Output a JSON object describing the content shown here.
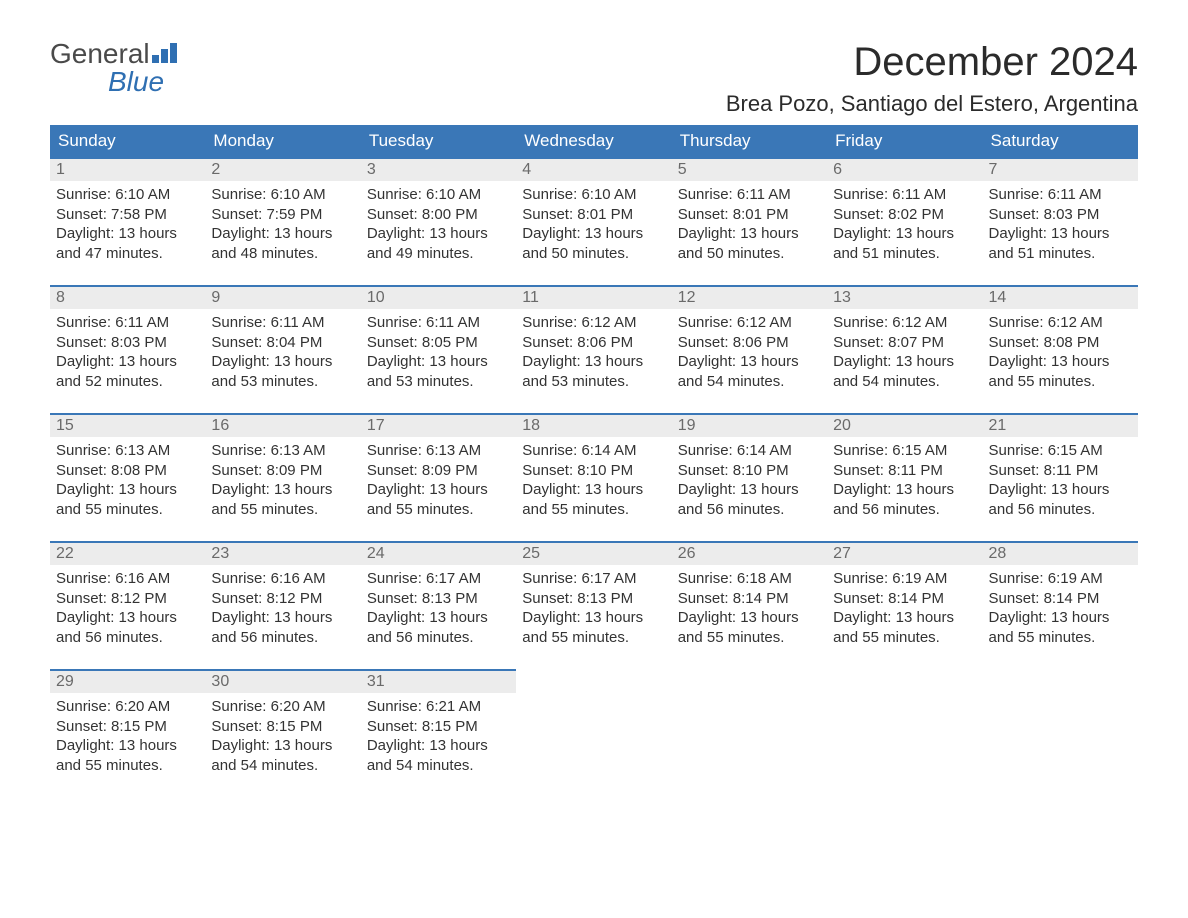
{
  "logo": {
    "word1": "General",
    "word2": "Blue"
  },
  "title": "December 2024",
  "location": "Brea Pozo, Santiago del Estero, Argentina",
  "colors": {
    "header_bg": "#3a77b7",
    "header_text": "#ffffff",
    "daynum_bg": "#ececec",
    "daynum_border": "#3a77b7",
    "logo_blue": "#2f6fb2",
    "text": "#333333"
  },
  "weekdays": [
    "Sunday",
    "Monday",
    "Tuesday",
    "Wednesday",
    "Thursday",
    "Friday",
    "Saturday"
  ],
  "weeks": [
    [
      {
        "n": "1",
        "sr": "6:10 AM",
        "ss": "7:58 PM",
        "dl": "13 hours and 47 minutes."
      },
      {
        "n": "2",
        "sr": "6:10 AM",
        "ss": "7:59 PM",
        "dl": "13 hours and 48 minutes."
      },
      {
        "n": "3",
        "sr": "6:10 AM",
        "ss": "8:00 PM",
        "dl": "13 hours and 49 minutes."
      },
      {
        "n": "4",
        "sr": "6:10 AM",
        "ss": "8:01 PM",
        "dl": "13 hours and 50 minutes."
      },
      {
        "n": "5",
        "sr": "6:11 AM",
        "ss": "8:01 PM",
        "dl": "13 hours and 50 minutes."
      },
      {
        "n": "6",
        "sr": "6:11 AM",
        "ss": "8:02 PM",
        "dl": "13 hours and 51 minutes."
      },
      {
        "n": "7",
        "sr": "6:11 AM",
        "ss": "8:03 PM",
        "dl": "13 hours and 51 minutes."
      }
    ],
    [
      {
        "n": "8",
        "sr": "6:11 AM",
        "ss": "8:03 PM",
        "dl": "13 hours and 52 minutes."
      },
      {
        "n": "9",
        "sr": "6:11 AM",
        "ss": "8:04 PM",
        "dl": "13 hours and 53 minutes."
      },
      {
        "n": "10",
        "sr": "6:11 AM",
        "ss": "8:05 PM",
        "dl": "13 hours and 53 minutes."
      },
      {
        "n": "11",
        "sr": "6:12 AM",
        "ss": "8:06 PM",
        "dl": "13 hours and 53 minutes."
      },
      {
        "n": "12",
        "sr": "6:12 AM",
        "ss": "8:06 PM",
        "dl": "13 hours and 54 minutes."
      },
      {
        "n": "13",
        "sr": "6:12 AM",
        "ss": "8:07 PM",
        "dl": "13 hours and 54 minutes."
      },
      {
        "n": "14",
        "sr": "6:12 AM",
        "ss": "8:08 PM",
        "dl": "13 hours and 55 minutes."
      }
    ],
    [
      {
        "n": "15",
        "sr": "6:13 AM",
        "ss": "8:08 PM",
        "dl": "13 hours and 55 minutes."
      },
      {
        "n": "16",
        "sr": "6:13 AM",
        "ss": "8:09 PM",
        "dl": "13 hours and 55 minutes."
      },
      {
        "n": "17",
        "sr": "6:13 AM",
        "ss": "8:09 PM",
        "dl": "13 hours and 55 minutes."
      },
      {
        "n": "18",
        "sr": "6:14 AM",
        "ss": "8:10 PM",
        "dl": "13 hours and 55 minutes."
      },
      {
        "n": "19",
        "sr": "6:14 AM",
        "ss": "8:10 PM",
        "dl": "13 hours and 56 minutes."
      },
      {
        "n": "20",
        "sr": "6:15 AM",
        "ss": "8:11 PM",
        "dl": "13 hours and 56 minutes."
      },
      {
        "n": "21",
        "sr": "6:15 AM",
        "ss": "8:11 PM",
        "dl": "13 hours and 56 minutes."
      }
    ],
    [
      {
        "n": "22",
        "sr": "6:16 AM",
        "ss": "8:12 PM",
        "dl": "13 hours and 56 minutes."
      },
      {
        "n": "23",
        "sr": "6:16 AM",
        "ss": "8:12 PM",
        "dl": "13 hours and 56 minutes."
      },
      {
        "n": "24",
        "sr": "6:17 AM",
        "ss": "8:13 PM",
        "dl": "13 hours and 56 minutes."
      },
      {
        "n": "25",
        "sr": "6:17 AM",
        "ss": "8:13 PM",
        "dl": "13 hours and 55 minutes."
      },
      {
        "n": "26",
        "sr": "6:18 AM",
        "ss": "8:14 PM",
        "dl": "13 hours and 55 minutes."
      },
      {
        "n": "27",
        "sr": "6:19 AM",
        "ss": "8:14 PM",
        "dl": "13 hours and 55 minutes."
      },
      {
        "n": "28",
        "sr": "6:19 AM",
        "ss": "8:14 PM",
        "dl": "13 hours and 55 minutes."
      }
    ],
    [
      {
        "n": "29",
        "sr": "6:20 AM",
        "ss": "8:15 PM",
        "dl": "13 hours and 55 minutes."
      },
      {
        "n": "30",
        "sr": "6:20 AM",
        "ss": "8:15 PM",
        "dl": "13 hours and 54 minutes."
      },
      {
        "n": "31",
        "sr": "6:21 AM",
        "ss": "8:15 PM",
        "dl": "13 hours and 54 minutes."
      },
      null,
      null,
      null,
      null
    ]
  ],
  "labels": {
    "sunrise": "Sunrise:",
    "sunset": "Sunset:",
    "daylight": "Daylight:"
  }
}
